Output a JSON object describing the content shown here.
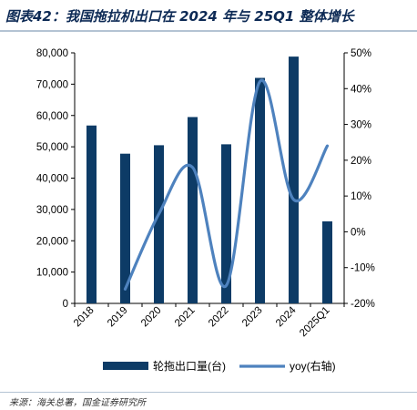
{
  "title": "图表42：我国拖拉机出口在 2024 年与 25Q1 整体增长",
  "source": "来源：海关总署，国金证券研究所",
  "colors": {
    "bar": "#0d3b66",
    "line": "#4e82be",
    "title": "#0d2a55"
  },
  "chart_data": {
    "type": "bar",
    "categories": [
      "2018",
      "2019",
      "2020",
      "2021",
      "2022",
      "2023",
      "2024",
      "2025Q1"
    ],
    "series": [
      {
        "name": "轮拖出口量(台)",
        "type": "bar",
        "axis": "left",
        "values": [
          56800,
          47800,
          50500,
          59500,
          50800,
          72000,
          78800,
          26200
        ]
      },
      {
        "name": "yoy(右轴)",
        "type": "line",
        "axis": "right",
        "smooth": true,
        "values": [
          null,
          -16,
          5,
          18,
          -15,
          42,
          9,
          24
        ]
      }
    ],
    "y_left": {
      "min": 0,
      "max": 80000,
      "step": 10000,
      "ticks": [
        "0",
        "10,000",
        "20,000",
        "30,000",
        "40,000",
        "50,000",
        "60,000",
        "70,000",
        "80,000"
      ]
    },
    "y_right": {
      "min": -20,
      "max": 50,
      "step": 10,
      "ticks": [
        "-20%",
        "-10%",
        "0%",
        "10%",
        "20%",
        "30%",
        "40%",
        "50%"
      ]
    },
    "legend_position": "bottom",
    "grid": false
  }
}
